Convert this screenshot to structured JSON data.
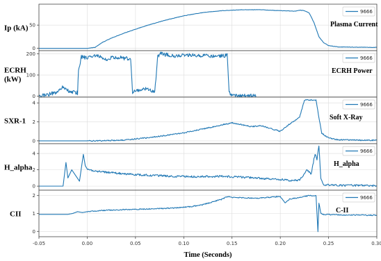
{
  "figure": {
    "xlabel": "Time (Seconds)"
  },
  "chart_data": [
    {
      "type": "line",
      "ylabel": "Ip (kA)",
      "title": "Plasma Current",
      "legend": "9666",
      "legend_position": "top-right",
      "grid": true,
      "xlim": [
        -0.05,
        0.3
      ],
      "ylim": [
        -5,
        95
      ],
      "yticks": [
        0,
        50
      ],
      "xticks": [
        "-0.05",
        "0.00",
        "0.05",
        "0.10",
        "0.15",
        "0.20",
        "0.25",
        "0.30"
      ],
      "color": "#1f77b4",
      "x": [
        -0.05,
        0.0,
        0.008,
        0.015,
        0.025,
        0.04,
        0.06,
        0.08,
        0.1,
        0.12,
        0.14,
        0.16,
        0.18,
        0.2,
        0.215,
        0.22,
        0.225,
        0.23,
        0.235,
        0.24,
        0.245,
        0.25,
        0.26,
        0.3
      ],
      "y": [
        0,
        0,
        2,
        12,
        22,
        34,
        48,
        60,
        70,
        77,
        81,
        83,
        83,
        81,
        80,
        82,
        81,
        76,
        55,
        25,
        12,
        6,
        3,
        2
      ]
    },
    {
      "type": "line",
      "ylabel": "ECRH (kW)",
      "title": "ECRH Power",
      "legend": "9666",
      "legend_position": "top-right",
      "grid": true,
      "xlim": [
        -0.05,
        0.3
      ],
      "ylim": [
        -5,
        215
      ],
      "yticks": [
        0,
        100,
        200
      ],
      "color": "#1f77b4",
      "x": [
        -0.05,
        -0.04,
        -0.03,
        -0.025,
        -0.02,
        -0.01,
        -0.009,
        -0.006,
        0.0,
        0.01,
        0.02,
        0.03,
        0.04,
        0.045,
        0.047,
        0.05,
        0.06,
        0.07,
        0.073,
        0.076,
        0.09,
        0.11,
        0.13,
        0.145,
        0.147,
        0.15,
        0.175
      ],
      "y": [
        0,
        8,
        22,
        45,
        25,
        15,
        120,
        185,
        180,
        190,
        175,
        185,
        178,
        180,
        15,
        25,
        35,
        20,
        185,
        200,
        190,
        195,
        188,
        192,
        20,
        2,
        1
      ]
    },
    {
      "type": "line",
      "ylabel": "SXR-1",
      "title": "Soft X-Ray",
      "legend": "9666",
      "legend_position": "top-right",
      "grid": true,
      "xlim": [
        -0.05,
        0.3
      ],
      "ylim": [
        -0.3,
        4.6
      ],
      "yticks": [
        0,
        2,
        4
      ],
      "color": "#1f77b4",
      "x": [
        -0.05,
        0.0,
        0.02,
        0.04,
        0.06,
        0.08,
        0.1,
        0.12,
        0.14,
        0.15,
        0.16,
        0.17,
        0.18,
        0.19,
        0.2,
        0.21,
        0.22,
        0.225,
        0.237,
        0.24,
        0.243,
        0.25,
        0.26,
        0.3
      ],
      "y": [
        0,
        0,
        0.02,
        0.1,
        0.3,
        0.55,
        0.85,
        1.25,
        1.7,
        1.9,
        1.7,
        1.5,
        1.6,
        1.3,
        1.0,
        1.8,
        2.5,
        4.3,
        4.3,
        2.5,
        0.8,
        0.3,
        0.1,
        0.05
      ]
    },
    {
      "type": "line",
      "ylabel": "H_alpha",
      "title": "H_alpha",
      "legend": "9666",
      "legend_position": "top-right",
      "grid": true,
      "xlim": [
        -0.05,
        0.3
      ],
      "ylim": [
        -0.5,
        5.2
      ],
      "yticks": [
        0,
        2,
        4
      ],
      "color": "#1f77b4",
      "x": [
        -0.05,
        -0.025,
        -0.022,
        -0.02,
        -0.016,
        -0.012,
        -0.008,
        -0.004,
        -0.002,
        0.0,
        0.005,
        0.02,
        0.05,
        0.08,
        0.11,
        0.14,
        0.16,
        0.18,
        0.2,
        0.21,
        0.22,
        0.228,
        0.232,
        0.236,
        0.238,
        0.24,
        0.242,
        0.245,
        0.26,
        0.3
      ],
      "y": [
        0,
        0,
        2.9,
        1.0,
        2.0,
        1.3,
        0.6,
        3.9,
        2.5,
        2.1,
        1.9,
        1.7,
        1.4,
        1.25,
        1.15,
        1.2,
        1.1,
        0.95,
        0.8,
        0.7,
        0.75,
        2.0,
        1.5,
        4.0,
        3.2,
        5.0,
        1.0,
        0.2,
        0.1,
        0.05
      ]
    },
    {
      "type": "line",
      "ylabel": "CII",
      "title": "C-II",
      "legend": "9666",
      "legend_position": "top-right",
      "grid": true,
      "xlim": [
        -0.05,
        0.3
      ],
      "ylim": [
        -0.3,
        2.3
      ],
      "yticks": [
        0,
        1,
        2
      ],
      "color": "#1f77b4",
      "x": [
        -0.05,
        -0.02,
        -0.015,
        -0.01,
        -0.005,
        0.0,
        0.01,
        0.03,
        0.06,
        0.09,
        0.11,
        0.12,
        0.13,
        0.14,
        0.145,
        0.15,
        0.175,
        0.2,
        0.205,
        0.21,
        0.23,
        0.237,
        0.239,
        0.24,
        0.242,
        0.245,
        0.26,
        0.3
      ],
      "y": [
        0.95,
        0.95,
        1.0,
        1.1,
        1.05,
        1.1,
        1.15,
        1.2,
        1.25,
        1.3,
        1.4,
        1.5,
        1.65,
        1.8,
        1.95,
        1.9,
        1.85,
        1.95,
        1.6,
        1.8,
        2.0,
        2.0,
        0.0,
        1.6,
        1.0,
        0.95,
        0.92,
        0.9
      ]
    }
  ]
}
